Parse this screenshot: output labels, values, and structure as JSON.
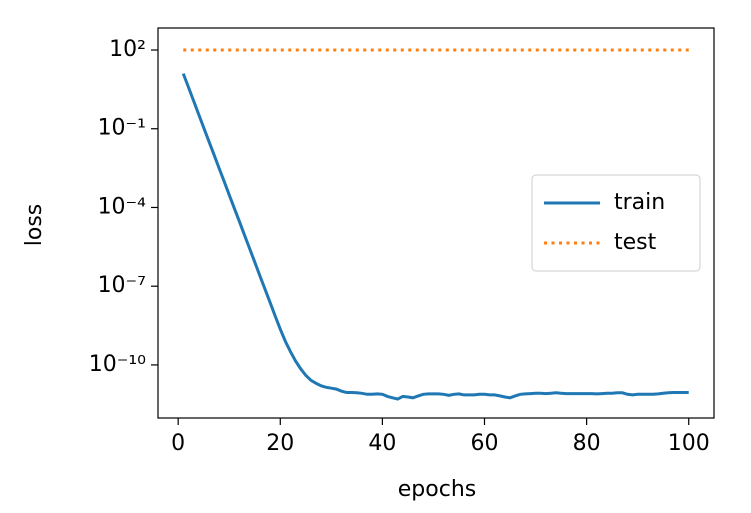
{
  "chart_data": {
    "type": "line",
    "x_label": "epochs",
    "y_label": "loss",
    "x": [
      1,
      2,
      3,
      4,
      5,
      6,
      7,
      8,
      9,
      10,
      11,
      12,
      13,
      14,
      15,
      16,
      17,
      18,
      19,
      20,
      21,
      22,
      23,
      24,
      25,
      26,
      27,
      28,
      29,
      30,
      31,
      32,
      33,
      34,
      35,
      36,
      37,
      38,
      39,
      40,
      41,
      42,
      43,
      44,
      45,
      46,
      47,
      48,
      49,
      50,
      51,
      52,
      53,
      54,
      55,
      56,
      57,
      58,
      59,
      60,
      61,
      62,
      63,
      64,
      65,
      66,
      67,
      68,
      69,
      70,
      71,
      72,
      73,
      74,
      75,
      76,
      77,
      78,
      79,
      80,
      81,
      82,
      83,
      84,
      85,
      86,
      87,
      88,
      89,
      90,
      91,
      92,
      93,
      94,
      95,
      96,
      97,
      98,
      99,
      100
    ],
    "series": [
      {
        "name": "train",
        "color": "#1f77b4",
        "style": "solid",
        "values": [
          12.6,
          3.9,
          1.19,
          0.36,
          0.11,
          0.034,
          0.0105,
          0.0032,
          0.00099,
          0.0003,
          9.3e-05,
          2.9e-05,
          8.8e-06,
          2.7e-06,
          8.3e-07,
          2.5e-07,
          7.8e-08,
          2.4e-08,
          7.3e-09,
          2.3e-09,
          7.9e-10,
          3.2e-10,
          1.4e-10,
          7.1e-11,
          4e-11,
          2.6e-11,
          2e-11,
          1.6e-11,
          1.4e-11,
          1.3e-11,
          1.2e-11,
          1e-11,
          8.9e-12,
          8.9e-12,
          8.7e-12,
          8.3e-12,
          7.6e-12,
          7.6e-12,
          7.9e-12,
          7.6e-12,
          6.3e-12,
          5.6e-12,
          5e-12,
          6.3e-12,
          6e-12,
          5.6e-12,
          6.6e-12,
          7.6e-12,
          7.9e-12,
          7.9e-12,
          7.9e-12,
          7.6e-12,
          6.9e-12,
          7.6e-12,
          7.9e-12,
          7.2e-12,
          7.2e-12,
          7.2e-12,
          7.6e-12,
          7.6e-12,
          7.2e-12,
          7.2e-12,
          6.6e-12,
          6e-12,
          5.6e-12,
          6.6e-12,
          7.6e-12,
          7.9e-12,
          8.1e-12,
          8.3e-12,
          8.3e-12,
          8.1e-12,
          8.3e-12,
          8.7e-12,
          8.3e-12,
          8.1e-12,
          8.1e-12,
          8.1e-12,
          8.1e-12,
          8.1e-12,
          8.1e-12,
          7.9e-12,
          8.1e-12,
          8.3e-12,
          8.3e-12,
          8.7e-12,
          8.7e-12,
          7.6e-12,
          7.2e-12,
          7.6e-12,
          7.6e-12,
          7.6e-12,
          7.6e-12,
          7.9e-12,
          8.3e-12,
          8.7e-12,
          8.9e-12,
          8.9e-12,
          8.9e-12,
          8.9e-12
        ]
      },
      {
        "name": "test",
        "color": "#ff7f0e",
        "style": "dotted",
        "values": [
          100,
          100,
          100,
          100,
          100,
          100,
          100,
          100,
          100,
          100,
          100,
          100,
          100,
          100,
          100,
          100,
          100,
          100,
          100,
          100,
          100,
          100,
          100,
          100,
          100,
          100,
          100,
          100,
          100,
          100,
          100,
          100,
          100,
          100,
          100,
          100,
          100,
          100,
          100,
          100,
          100,
          100,
          100,
          100,
          100,
          100,
          100,
          100,
          100,
          100,
          100,
          100,
          100,
          100,
          100,
          100,
          100,
          100,
          100,
          100,
          100,
          100,
          100,
          100,
          100,
          100,
          100,
          100,
          100,
          100,
          100,
          100,
          100,
          100,
          100,
          100,
          100,
          100,
          100,
          100,
          100,
          100,
          100,
          100,
          100,
          100,
          100,
          100,
          100,
          100,
          100,
          100,
          100,
          100,
          100,
          100,
          100,
          100,
          100,
          100
        ]
      }
    ],
    "xlim": [
      -3.95,
      104.95
    ],
    "xticks": [
      0,
      20,
      40,
      60,
      80,
      100
    ],
    "ylim": [
      9.5e-13,
      690
    ],
    "y_scale": "log",
    "yticks": [
      {
        "value": 100,
        "label": "10²"
      },
      {
        "value": 0.1,
        "label": "10⁻¹"
      },
      {
        "value": 0.0001,
        "label": "10⁻⁴"
      },
      {
        "value": 1e-07,
        "label": "10⁻⁷"
      },
      {
        "value": 1e-10,
        "label": "10⁻¹⁰"
      }
    ],
    "legend": "center right",
    "grid": false
  }
}
